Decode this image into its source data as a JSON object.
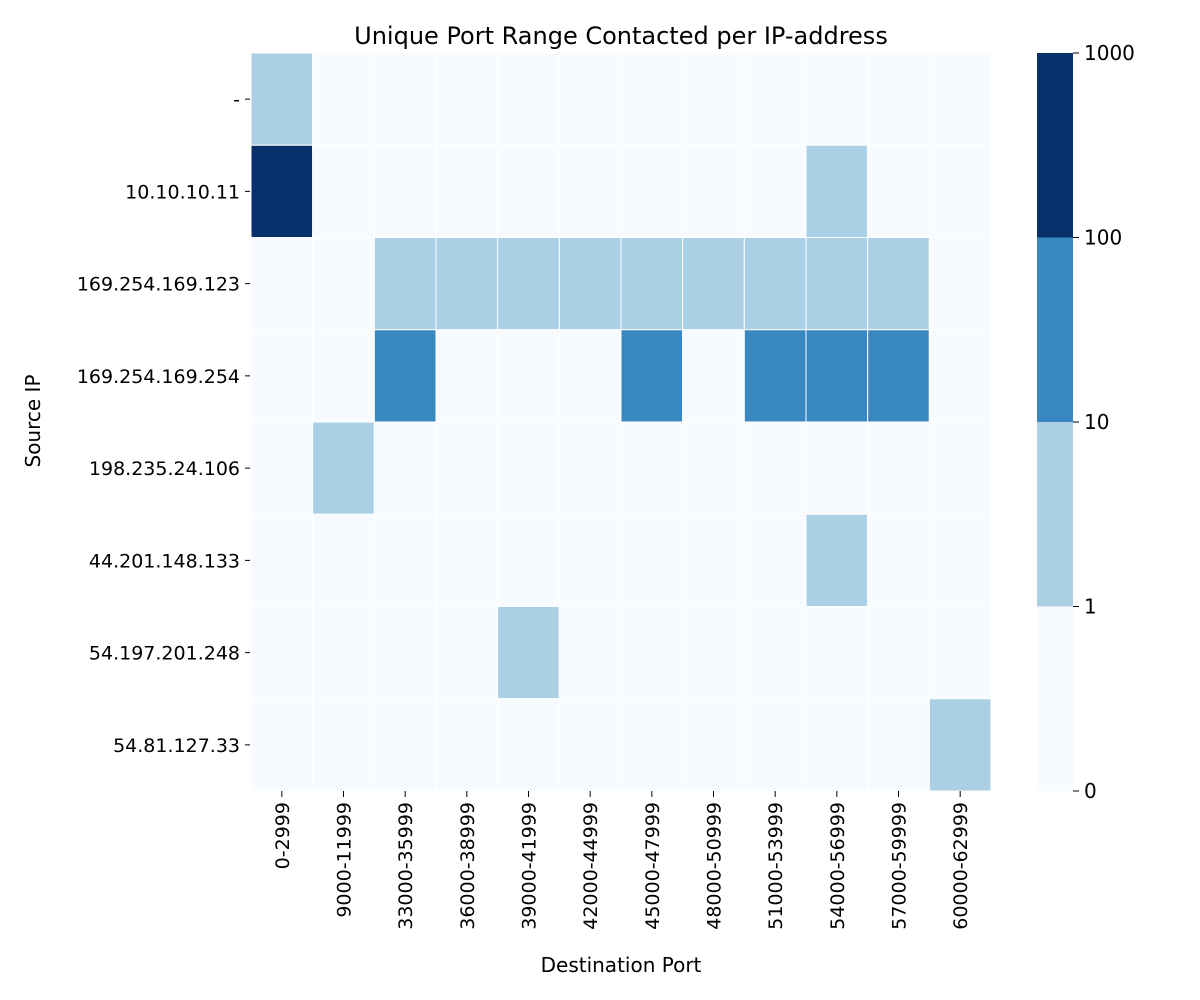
{
  "chart_data": {
    "type": "heatmap",
    "title": "Unique Port Range Contacted per IP-address",
    "xlabel": "Destination Port",
    "ylabel": "Source IP",
    "x_categories": [
      "0-2999",
      "9000-11999",
      "33000-35999",
      "36000-38999",
      "39000-41999",
      "42000-44999",
      "45000-47999",
      "48000-50999",
      "51000-53999",
      "54000-56999",
      "57000-59999",
      "60000-62999"
    ],
    "y_categories": [
      "-",
      "10.10.10.11",
      "169.254.169.123",
      "169.254.169.254",
      "198.235.24.106",
      "44.201.148.133",
      "54.197.201.248",
      "54.81.127.33"
    ],
    "bin_index_matrix": [
      [
        1,
        0,
        0,
        0,
        0,
        0,
        0,
        0,
        0,
        0,
        0,
        0
      ],
      [
        3,
        0,
        0,
        0,
        0,
        0,
        0,
        0,
        0,
        1,
        0,
        0
      ],
      [
        0,
        0,
        1,
        1,
        1,
        1,
        1,
        1,
        1,
        1,
        1,
        0
      ],
      [
        0,
        0,
        2,
        0,
        0,
        0,
        2,
        0,
        2,
        2,
        2,
        0
      ],
      [
        0,
        1,
        0,
        0,
        0,
        0,
        0,
        0,
        0,
        0,
        0,
        0
      ],
      [
        0,
        0,
        0,
        0,
        0,
        0,
        0,
        0,
        0,
        1,
        0,
        0
      ],
      [
        0,
        0,
        0,
        0,
        1,
        0,
        0,
        0,
        0,
        0,
        0,
        0
      ],
      [
        0,
        0,
        0,
        0,
        0,
        0,
        0,
        0,
        0,
        0,
        0,
        1
      ]
    ],
    "colorbar": {
      "boundaries": [
        0,
        1,
        10,
        100,
        1000
      ],
      "tick_labels": [
        "0",
        "1",
        "10",
        "100",
        "1000"
      ],
      "colors": [
        "#f7fbff",
        "#abcfe5",
        "#3887c0",
        "#08306b"
      ]
    },
    "grid": false,
    "legend": "colorbar-right"
  }
}
